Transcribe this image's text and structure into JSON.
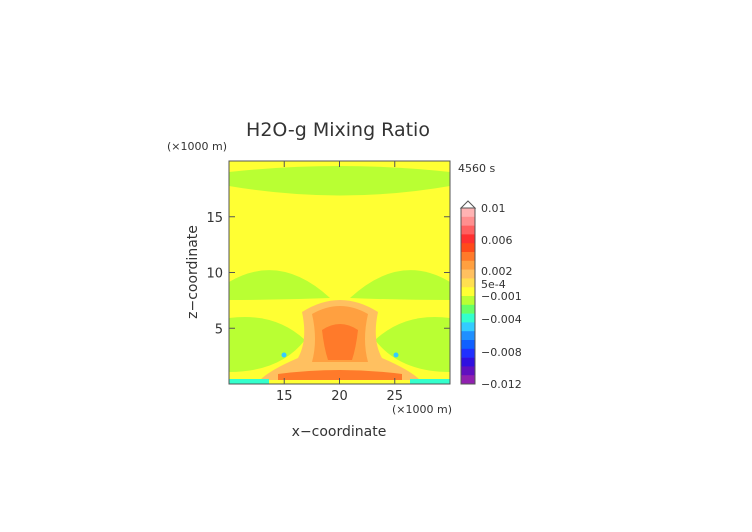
{
  "chart_data": {
    "type": "heatmap",
    "title": "H2O-g Mixing Ratio",
    "time_label": "4560 s",
    "xlabel": "x−coordinate",
    "ylabel": "z−coordinate",
    "x_unit": "(×1000 m)",
    "y_unit": "(×1000 m)",
    "xlim": [
      10,
      30
    ],
    "ylim": [
      0,
      20
    ],
    "x_ticks": [
      15,
      20,
      25
    ],
    "y_ticks": [
      5,
      10,
      15
    ],
    "colorbar": {
      "levels": [
        "0.01",
        "0.006",
        "0.002",
        "5e-4",
        "−0.001",
        "−0.004",
        "−0.008",
        "−0.012"
      ],
      "colors": [
        "#ffb3b3",
        "#ff8f8f",
        "#ff6060",
        "#ff3030",
        "#ff4a1a",
        "#ff7a2a",
        "#ffa040",
        "#ffc060",
        "#ffdf50",
        "#ffff33",
        "#b9ff33",
        "#66ff66",
        "#33ffcc",
        "#33ccff",
        "#1f8fff",
        "#1060ff",
        "#2030ff",
        "#3010e0",
        "#6010c0",
        "#9020b0"
      ]
    },
    "regions": [
      {
        "value": "-0.001",
        "color": "#bfff33",
        "description": "upper band near z 17.5-19.5"
      },
      {
        "value": "5e-4",
        "color": "#ffff33",
        "description": "background"
      },
      {
        "value": "0.002",
        "color": "#ff9f40",
        "description": "central plume x 17-23, z 0.5-7"
      },
      {
        "value": "0.006",
        "color": "#ff6030",
        "description": "core near x 20, z 2.5-5"
      }
    ]
  }
}
